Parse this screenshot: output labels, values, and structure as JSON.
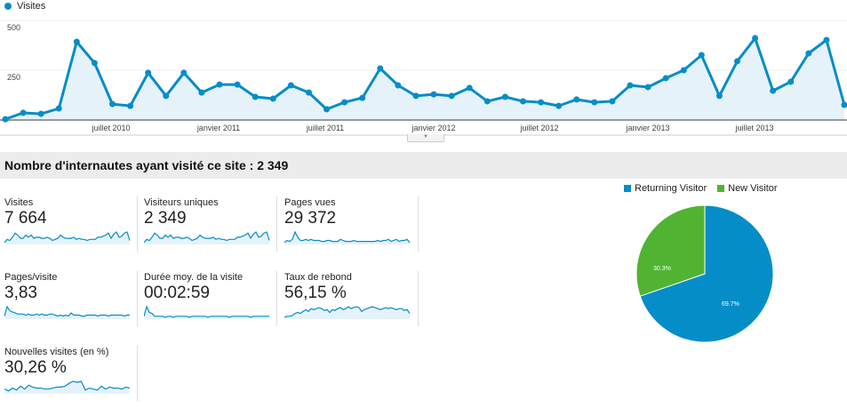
{
  "chart_data": [
    {
      "type": "area",
      "title": "",
      "legend": [
        "Visites"
      ],
      "xlabel": "",
      "ylabel": "",
      "ylim": [
        0,
        500
      ],
      "yticks": [
        250,
        500
      ],
      "xtick_labels": [
        "juillet 2010",
        "janvier 2011",
        "juillet 2011",
        "janvier 2012",
        "juillet 2012",
        "janvier 2013",
        "juillet 2013"
      ],
      "series": [
        {
          "name": "Visites",
          "color": "#058dc7",
          "values": [
            4,
            36,
            31,
            58,
            393,
            286,
            80,
            71,
            237,
            121,
            237,
            138,
            178,
            178,
            116,
            107,
            174,
            138,
            54,
            89,
            111,
            259,
            174,
            121,
            129,
            121,
            161,
            94,
            116,
            94,
            89,
            71,
            103,
            89,
            94,
            174,
            165,
            210,
            250,
            326,
            121,
            295,
            411,
            147,
            192,
            335,
            402,
            76
          ]
        }
      ]
    },
    {
      "type": "pie",
      "legend": [
        "Returning Visitor",
        "New Visitor"
      ],
      "categories": [
        "Returning Visitor",
        "New Visitor"
      ],
      "values": [
        69.7,
        30.3
      ],
      "labels": [
        "69.7%",
        "30.3%"
      ],
      "colors": [
        "#058dc7",
        "#50b432"
      ]
    }
  ],
  "legend": {
    "series_label": "Visites"
  },
  "axis": {
    "y": [
      "500",
      "250"
    ],
    "x": [
      "juillet 2010",
      "janvier 2011",
      "juillet 2011",
      "janvier 2012",
      "juillet 2012",
      "janvier 2013",
      "juillet 2013"
    ]
  },
  "summary": {
    "title": "Nombre d'internautes ayant visité ce site : 2 349"
  },
  "tiles": [
    {
      "label": "Visites",
      "value": "7 664",
      "spark": [
        1,
        4,
        3,
        6,
        10,
        8,
        5,
        5,
        8,
        6,
        8,
        5,
        6,
        6,
        5,
        5,
        6,
        5,
        3,
        4,
        5,
        8,
        6,
        5,
        5,
        5,
        6,
        4,
        5,
        4,
        4,
        3,
        4,
        4,
        4,
        6,
        6,
        7,
        8,
        10,
        5,
        9,
        11,
        6,
        7,
        10,
        11,
        3
      ]
    },
    {
      "label": "Visiteurs uniques",
      "value": "2 349",
      "spark": [
        1,
        4,
        3,
        6,
        10,
        8,
        5,
        5,
        8,
        6,
        8,
        5,
        6,
        6,
        5,
        5,
        6,
        5,
        3,
        4,
        5,
        8,
        6,
        5,
        5,
        5,
        6,
        4,
        5,
        4,
        4,
        3,
        4,
        4,
        4,
        6,
        6,
        7,
        8,
        10,
        5,
        9,
        11,
        6,
        7,
        10,
        11,
        3
      ]
    },
    {
      "label": "Pages vues",
      "value": "29 372",
      "spark": [
        1,
        3,
        2,
        4,
        11,
        6,
        3,
        3,
        4,
        3,
        4,
        3,
        3,
        3,
        2,
        2,
        3,
        3,
        2,
        2,
        2,
        4,
        3,
        2,
        2,
        2,
        3,
        2,
        2,
        2,
        2,
        2,
        2,
        2,
        2,
        3,
        2,
        3,
        3,
        4,
        2,
        3,
        4,
        2,
        3,
        3,
        4,
        1
      ]
    },
    {
      "label": "Pages/visite",
      "value": "3,83",
      "spark": [
        2,
        11,
        7,
        6,
        5,
        4,
        4,
        4,
        3,
        4,
        3,
        3,
        4,
        3,
        4,
        3,
        3,
        4,
        4,
        3,
        2,
        3,
        2,
        3,
        2,
        5,
        3,
        3,
        3,
        2,
        2,
        3,
        3,
        3,
        3,
        2,
        3,
        3,
        3,
        2,
        3,
        3,
        3,
        3,
        3,
        2,
        3,
        3
      ]
    },
    {
      "label": "Durée moy. de la visite",
      "value": "00:02:59",
      "spark": [
        2,
        12,
        6,
        5,
        2,
        2,
        2,
        2,
        1,
        2,
        2,
        1,
        2,
        2,
        2,
        2,
        2,
        1,
        2,
        2,
        2,
        2,
        2,
        2,
        1,
        2,
        2,
        2,
        2,
        2,
        2,
        2,
        1,
        2,
        2,
        2,
        2,
        2,
        2,
        2,
        1,
        2,
        2,
        2,
        2,
        2,
        2,
        2
      ]
    },
    {
      "label": "Taux de rebond",
      "value": "56,15 %",
      "spark": [
        1,
        2,
        2,
        3,
        5,
        6,
        5,
        7,
        9,
        7,
        10,
        9,
        10,
        11,
        10,
        8,
        9,
        6,
        9,
        8,
        10,
        11,
        9,
        10,
        12,
        10,
        11,
        12,
        11,
        7,
        9,
        10,
        11,
        12,
        11,
        10,
        9,
        10,
        11,
        10,
        11,
        10,
        9,
        10,
        10,
        8,
        9,
        5
      ]
    },
    {
      "label": "Nouvelles visites (en %)",
      "value": "30,26 %",
      "spark": [
        4,
        2,
        5,
        3,
        7,
        4,
        8,
        6,
        5,
        5,
        4,
        4,
        5,
        6,
        6,
        7,
        10,
        12,
        11,
        12,
        3,
        5,
        4,
        3,
        7,
        4,
        6,
        5,
        5,
        4,
        6,
        5
      ]
    }
  ],
  "pie": {
    "legend": [
      {
        "label": "Returning Visitor",
        "color": "#058dc7"
      },
      {
        "label": "New Visitor",
        "color": "#50b432"
      }
    ],
    "labels": {
      "returning": "69.7%",
      "new": "30.3%"
    }
  },
  "colors": {
    "accent": "#058dc7",
    "fill": "#e6f2fa",
    "green": "#50b432"
  }
}
